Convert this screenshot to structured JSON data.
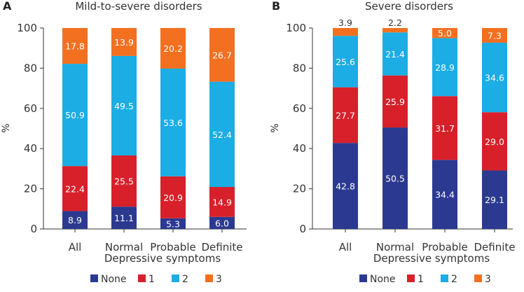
{
  "chart_data": [
    {
      "type": "bar",
      "stacked": true,
      "panel_label": "A",
      "title": "Mild-to-severe disorders",
      "xlabel": "Depressive symptoms",
      "ylabel": "%",
      "ylim": [
        0,
        100
      ],
      "yticks": [
        "0",
        "20",
        "40",
        "60",
        "80",
        "100"
      ],
      "categories": [
        "All",
        "Normal",
        "Probable",
        "Definite"
      ],
      "series": [
        {
          "name": "None",
          "values": [
            8.9,
            11.1,
            5.3,
            6.0
          ],
          "labels": [
            "8.9",
            "11.1",
            "5.3",
            "6.0"
          ]
        },
        {
          "name": "1",
          "values": [
            22.4,
            25.5,
            20.9,
            14.9
          ],
          "labels": [
            "22.4",
            "25.5",
            "20.9",
            "14.9"
          ]
        },
        {
          "name": "2",
          "values": [
            50.9,
            49.5,
            53.6,
            52.4
          ],
          "labels": [
            "50.9",
            "49.5",
            "53.6",
            "52.4"
          ]
        },
        {
          "name": "3",
          "values": [
            17.8,
            13.9,
            20.2,
            26.7
          ],
          "labels": [
            "17.8",
            "13.9",
            "20.2",
            "26.7"
          ]
        }
      ]
    },
    {
      "type": "bar",
      "stacked": true,
      "panel_label": "B",
      "title": "Severe disorders",
      "xlabel": "Depressive symptoms",
      "ylabel": "%",
      "ylim": [
        0,
        100
      ],
      "yticks": [
        "0",
        "20",
        "40",
        "60",
        "80",
        "100"
      ],
      "categories": [
        "All",
        "Normal",
        "Probable",
        "Definite"
      ],
      "series": [
        {
          "name": "None",
          "values": [
            42.8,
            50.5,
            34.4,
            29.1
          ],
          "labels": [
            "42.8",
            "50.5",
            "34.4",
            "29.1"
          ]
        },
        {
          "name": "1",
          "values": [
            27.7,
            25.9,
            31.7,
            29.0
          ],
          "labels": [
            "27.7",
            "25.9",
            "31.7",
            "29.0"
          ]
        },
        {
          "name": "2",
          "values": [
            25.6,
            21.4,
            28.9,
            34.6
          ],
          "labels": [
            "25.6",
            "21.4",
            "28.9",
            "34.6"
          ]
        },
        {
          "name": "3",
          "values": [
            3.9,
            2.2,
            5.0,
            7.3
          ],
          "labels": [
            "3.9",
            "2.2",
            "5.0",
            "7.3"
          ]
        }
      ]
    }
  ],
  "legend": [
    {
      "name": "None",
      "color": "#2b3990"
    },
    {
      "name": "1",
      "color": "#d7202a"
    },
    {
      "name": "2",
      "color": "#1bade4"
    },
    {
      "name": "3",
      "color": "#f37021"
    }
  ]
}
